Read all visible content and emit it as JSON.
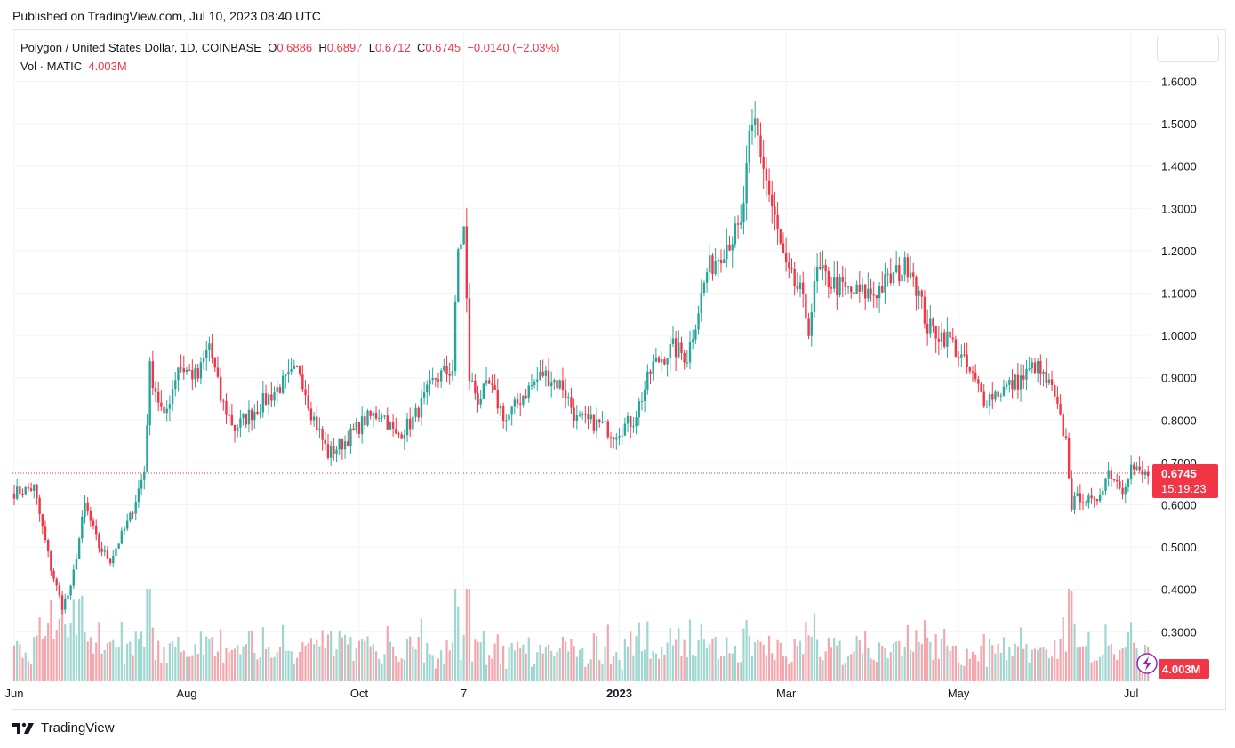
{
  "header": {
    "published": "Published on TradingView.com, Jul 10, 2023 08:40 UTC"
  },
  "legend": {
    "symbol": "Polygon / United States Dollar, 1D, COINBASE",
    "o_label": "O",
    "o_value": "0.6886",
    "h_label": "H",
    "h_value": "0.6897",
    "l_label": "L",
    "l_value": "0.6712",
    "c_label": "C",
    "c_value": "0.6745",
    "change": "−0.0140 (−2.03%)",
    "vol_label": "Vol · MATIC",
    "vol_value": "4.003M"
  },
  "price_badge": {
    "price": "0.6745",
    "countdown": "15:19:23"
  },
  "volume_badge": "4.003M",
  "footer": {
    "brand": "TradingView"
  },
  "colors": {
    "up": "#26a69a",
    "down": "#f23645",
    "up_vol": "#9ed6d0",
    "down_vol": "#f5a6ac",
    "grid": "#f0f3fa"
  },
  "chart_data": {
    "type": "candlestick",
    "y_ticks": [
      "1.6000",
      "1.5000",
      "1.4000",
      "1.3000",
      "1.2000",
      "1.1000",
      "1.0000",
      "0.9000",
      "0.8000",
      "0.7000",
      "0.6000",
      "0.5000",
      "0.4000",
      "0.3000"
    ],
    "ylim": [
      0.25,
      1.6
    ],
    "x_ticks": [
      {
        "label": "Jun",
        "date": "2022-06-01",
        "bold": false
      },
      {
        "label": "Aug",
        "date": "2022-08-01",
        "bold": false
      },
      {
        "label": "Oct",
        "date": "2022-10-01",
        "bold": false
      },
      {
        "label": "7",
        "date": "2022-11-07",
        "bold": false
      },
      {
        "label": "2023",
        "date": "2023-01-01",
        "bold": true
      },
      {
        "label": "Mar",
        "date": "2023-03-01",
        "bold": false
      },
      {
        "label": "May",
        "date": "2023-05-01",
        "bold": false
      },
      {
        "label": "Jul",
        "date": "2023-07-01",
        "bold": false
      }
    ],
    "start_date": "2022-06-01",
    "end_date": "2023-07-10",
    "close_anchors": [
      [
        "2022-06-01",
        0.63
      ],
      [
        "2022-06-08",
        0.64
      ],
      [
        "2022-06-14",
        0.45
      ],
      [
        "2022-06-18",
        0.36
      ],
      [
        "2022-06-21",
        0.4
      ],
      [
        "2022-06-26",
        0.6
      ],
      [
        "2022-07-01",
        0.5
      ],
      [
        "2022-07-05",
        0.47
      ],
      [
        "2022-07-12",
        0.57
      ],
      [
        "2022-07-17",
        0.68
      ],
      [
        "2022-07-19",
        0.92
      ],
      [
        "2022-07-24",
        0.8
      ],
      [
        "2022-07-29",
        0.93
      ],
      [
        "2022-08-05",
        0.9
      ],
      [
        "2022-08-09",
        0.98
      ],
      [
        "2022-08-13",
        0.85
      ],
      [
        "2022-08-18",
        0.78
      ],
      [
        "2022-08-26",
        0.83
      ],
      [
        "2022-09-03",
        0.88
      ],
      [
        "2022-09-10",
        0.92
      ],
      [
        "2022-09-14",
        0.82
      ],
      [
        "2022-09-20",
        0.72
      ],
      [
        "2022-09-26",
        0.75
      ],
      [
        "2022-10-03",
        0.8
      ],
      [
        "2022-10-09",
        0.82
      ],
      [
        "2022-10-14",
        0.76
      ],
      [
        "2022-10-20",
        0.8
      ],
      [
        "2022-10-28",
        0.9
      ],
      [
        "2022-11-03",
        0.92
      ],
      [
        "2022-11-05",
        1.2
      ],
      [
        "2022-11-07",
        1.25
      ],
      [
        "2022-11-09",
        0.9
      ],
      [
        "2022-11-12",
        0.85
      ],
      [
        "2022-11-16",
        0.88
      ],
      [
        "2022-11-22",
        0.8
      ],
      [
        "2022-11-28",
        0.86
      ],
      [
        "2022-12-05",
        0.91
      ],
      [
        "2022-12-12",
        0.88
      ],
      [
        "2022-12-17",
        0.8
      ],
      [
        "2022-12-25",
        0.79
      ],
      [
        "2022-12-30",
        0.77
      ],
      [
        "2023-01-06",
        0.8
      ],
      [
        "2023-01-13",
        0.93
      ],
      [
        "2023-01-20",
        0.97
      ],
      [
        "2023-01-25",
        0.95
      ],
      [
        "2023-02-01",
        1.15
      ],
      [
        "2023-02-08",
        1.22
      ],
      [
        "2023-02-13",
        1.25
      ],
      [
        "2023-02-16",
        1.45
      ],
      [
        "2023-02-18",
        1.5
      ],
      [
        "2023-02-24",
        1.3
      ],
      [
        "2023-03-01",
        1.15
      ],
      [
        "2023-03-06",
        1.1
      ],
      [
        "2023-03-09",
        1.02
      ],
      [
        "2023-03-12",
        1.15
      ],
      [
        "2023-03-18",
        1.12
      ],
      [
        "2023-03-24",
        1.1
      ],
      [
        "2023-04-01",
        1.1
      ],
      [
        "2023-04-10",
        1.15
      ],
      [
        "2023-04-14",
        1.17
      ],
      [
        "2023-04-20",
        1.02
      ],
      [
        "2023-04-28",
        0.99
      ],
      [
        "2023-05-06",
        0.9
      ],
      [
        "2023-05-10",
        0.85
      ],
      [
        "2023-05-16",
        0.87
      ],
      [
        "2023-05-24",
        0.9
      ],
      [
        "2023-05-28",
        0.93
      ],
      [
        "2023-06-03",
        0.87
      ],
      [
        "2023-06-08",
        0.75
      ],
      [
        "2023-06-10",
        0.6
      ],
      [
        "2023-06-13",
        0.62
      ],
      [
        "2023-06-18",
        0.6
      ],
      [
        "2023-06-23",
        0.68
      ],
      [
        "2023-06-28",
        0.64
      ],
      [
        "2023-07-01",
        0.69
      ],
      [
        "2023-07-05",
        0.67
      ],
      [
        "2023-07-10",
        0.6745
      ]
    ],
    "current_price": 0.6745,
    "volume_ylim_top": 0.58
  }
}
